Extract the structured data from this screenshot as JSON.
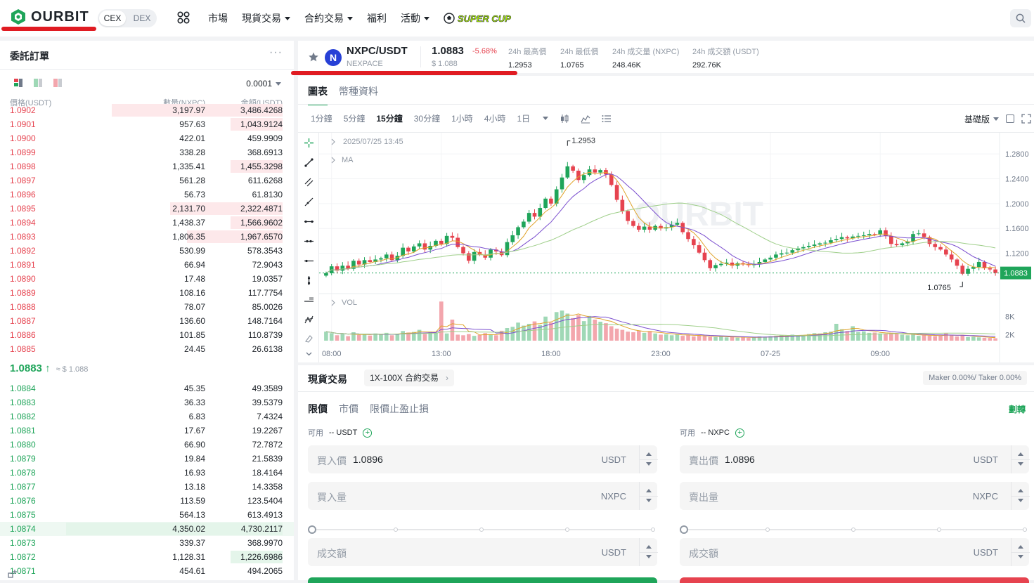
{
  "header": {
    "logo_text": "OURBIT",
    "segments": [
      {
        "label": "CEX",
        "active": true
      },
      {
        "label": "DEX",
        "active": false
      }
    ],
    "nav": [
      {
        "label": "市場",
        "dropdown": false
      },
      {
        "label": "現貨交易",
        "dropdown": true
      },
      {
        "label": "合約交易",
        "dropdown": true
      },
      {
        "label": "福利",
        "dropdown": false
      },
      {
        "label": "活動",
        "dropdown": true
      }
    ],
    "promo_label": "SUPER CUP",
    "search_icon": "search-icon"
  },
  "orderbook": {
    "title": "委託訂單",
    "precision": "0.0001",
    "headers": {
      "price": "價格(USDT)",
      "qty": "數量(NXPC)",
      "amount": "金額(USDT)"
    },
    "asks": [
      {
        "price": "1.0902",
        "qty": "3,197.97",
        "amount": "3,486.4268",
        "depth": 0.79
      },
      {
        "price": "1.0901",
        "qty": "957.63",
        "amount": "1,043.9124",
        "depth": 0.24
      },
      {
        "price": "1.0900",
        "qty": "422.01",
        "amount": "459.9909",
        "depth": 0.0
      },
      {
        "price": "1.0899",
        "qty": "338.28",
        "amount": "368.6913",
        "depth": 0.0
      },
      {
        "price": "1.0898",
        "qty": "1,335.41",
        "amount": "1,455.3298",
        "depth": 0.24
      },
      {
        "price": "1.0897",
        "qty": "561.28",
        "amount": "611.6268",
        "depth": 0.0
      },
      {
        "price": "1.0896",
        "qty": "56.73",
        "amount": "61.8130",
        "depth": 0.0
      },
      {
        "price": "1.0895",
        "qty": "2,131.70",
        "amount": "2,322.4871",
        "depth": 0.52
      },
      {
        "price": "1.0894",
        "qty": "1,438.37",
        "amount": "1,566.9602",
        "depth": 0.24
      },
      {
        "price": "1.0893",
        "qty": "1,806.35",
        "amount": "1,967.6570",
        "depth": 0.44
      },
      {
        "price": "1.0892",
        "qty": "530.99",
        "amount": "578.3543",
        "depth": 0.0
      },
      {
        "price": "1.0891",
        "qty": "66.94",
        "amount": "72.9043",
        "depth": 0.0
      },
      {
        "price": "1.0890",
        "qty": "17.48",
        "amount": "19.0357",
        "depth": 0.0
      },
      {
        "price": "1.0889",
        "qty": "108.16",
        "amount": "117.7754",
        "depth": 0.0
      },
      {
        "price": "1.0888",
        "qty": "78.07",
        "amount": "85.0026",
        "depth": 0.0
      },
      {
        "price": "1.0887",
        "qty": "136.60",
        "amount": "148.7164",
        "depth": 0.0
      },
      {
        "price": "1.0886",
        "qty": "101.85",
        "amount": "110.8739",
        "depth": 0.0
      },
      {
        "price": "1.0885",
        "qty": "24.45",
        "amount": "26.6138",
        "depth": 0.0
      }
    ],
    "last_price": "1.0883",
    "last_arrow": "↑",
    "last_fiat": "≈ $ 1.088",
    "bids": [
      {
        "price": "1.0884",
        "qty": "45.35",
        "amount": "49.3589",
        "depth": 0.0
      },
      {
        "price": "1.0883",
        "qty": "36.33",
        "amount": "39.5379",
        "depth": 0.0
      },
      {
        "price": "1.0882",
        "qty": "6.83",
        "amount": "7.4324",
        "depth": 0.0
      },
      {
        "price": "1.0881",
        "qty": "17.67",
        "amount": "19.2267",
        "depth": 0.0
      },
      {
        "price": "1.0880",
        "qty": "66.90",
        "amount": "72.7872",
        "depth": 0.0
      },
      {
        "price": "1.0879",
        "qty": "19.84",
        "amount": "21.5839",
        "depth": 0.0
      },
      {
        "price": "1.0878",
        "qty": "16.93",
        "amount": "18.4164",
        "depth": 0.0
      },
      {
        "price": "1.0877",
        "qty": "13.18",
        "amount": "14.3358",
        "depth": 0.0
      },
      {
        "price": "1.0876",
        "qty": "113.59",
        "amount": "123.5404",
        "depth": 0.0
      },
      {
        "price": "1.0875",
        "qty": "564.13",
        "amount": "613.4913",
        "depth": 0.0
      },
      {
        "price": "1.0874",
        "qty": "4,350.02",
        "amount": "4,730.2117",
        "depth": 1.0
      },
      {
        "price": "1.0873",
        "qty": "339.37",
        "amount": "368.9970",
        "depth": 0.0
      },
      {
        "price": "1.0872",
        "qty": "1,128.31",
        "amount": "1,226.6986",
        "depth": 0.24
      },
      {
        "price": "1.0871",
        "qty": "454.61",
        "amount": "494.2065",
        "depth": 0.0
      }
    ]
  },
  "ticker": {
    "pair": "NXPC/USDT",
    "name": "NEXPACE",
    "coin_letter": "N",
    "price": "1.0883",
    "change": "-5.68%",
    "fiat": "$ 1.088",
    "stats": [
      {
        "label": "24h 最高價",
        "value": "1.2953"
      },
      {
        "label": "24h 最低價",
        "value": "1.0765"
      },
      {
        "label": "24h 成交量 (NXPC)",
        "value": "248.46K"
      },
      {
        "label": "24h 成交額 (USDT)",
        "value": "292.76K"
      }
    ]
  },
  "chart_panel": {
    "tabs": [
      {
        "label": "圖表",
        "active": true
      },
      {
        "label": "幣種資料",
        "active": false
      }
    ],
    "timeframes": [
      {
        "label": "1分鐘",
        "active": false
      },
      {
        "label": "5分鐘",
        "active": false
      },
      {
        "label": "15分鐘",
        "active": true
      },
      {
        "label": "30分鐘",
        "active": false
      },
      {
        "label": "1小時",
        "active": false
      },
      {
        "label": "4小時",
        "active": false
      },
      {
        "label": "1日",
        "active": false
      }
    ],
    "version": "基礎版"
  },
  "chart_data": {
    "type": "candlestick",
    "legend_date": "2025/07/25 13:45",
    "legend_ma": "MA",
    "legend_vol": "VOL",
    "watermark": "OURBIT",
    "last_price_label": "1.0883",
    "last_price": 1.0883,
    "high_label": "1.2953",
    "low_label": "1.0765",
    "y_ticks": [
      1.28,
      1.24,
      1.2,
      1.16,
      1.12
    ],
    "y_tick_labels": [
      "1.2800",
      "1.2400",
      "1.2000",
      "1.1600",
      "1.1200"
    ],
    "ylim": [
      1.063,
      1.305
    ],
    "vol_ticks": [
      {
        "label": "8K",
        "value": 8000
      },
      {
        "label": "2K",
        "value": 2000
      }
    ],
    "vol_max": 14000,
    "x_ticks": [
      {
        "label": "08:00",
        "index": 1
      },
      {
        "label": "13:00",
        "index": 21
      },
      {
        "label": "18:00",
        "index": 41
      },
      {
        "label": "23:00",
        "index": 61
      },
      {
        "label": "07-25",
        "index": 81
      },
      {
        "label": "09:00",
        "index": 101
      }
    ],
    "closes": [
      1.088,
      1.099,
      1.092,
      1.1,
      1.095,
      1.108,
      1.102,
      1.109,
      1.106,
      1.11,
      1.112,
      1.118,
      1.109,
      1.116,
      1.129,
      1.123,
      1.131,
      1.136,
      1.126,
      1.132,
      1.14,
      1.135,
      1.148,
      1.145,
      1.13,
      1.12,
      1.108,
      1.122,
      1.118,
      1.113,
      1.126,
      1.123,
      1.117,
      1.138,
      1.149,
      1.162,
      1.171,
      1.185,
      1.179,
      1.193,
      1.208,
      1.2,
      1.223,
      1.242,
      1.26,
      1.253,
      1.238,
      1.246,
      1.255,
      1.25,
      1.254,
      1.247,
      1.23,
      1.206,
      1.188,
      1.172,
      1.164,
      1.158,
      1.163,
      1.158,
      1.164,
      1.16,
      1.162,
      1.166,
      1.169,
      1.154,
      1.143,
      1.133,
      1.121,
      1.109,
      1.096,
      1.101,
      1.103,
      1.105,
      1.1,
      1.104,
      1.102,
      1.101,
      1.103,
      1.106,
      1.11,
      1.113,
      1.118,
      1.12,
      1.121,
      1.125,
      1.128,
      1.13,
      1.132,
      1.134,
      1.136,
      1.137,
      1.141,
      1.143,
      1.146,
      1.144,
      1.147,
      1.148,
      1.149,
      1.151,
      1.15,
      1.157,
      1.148,
      1.135,
      1.133,
      1.136,
      1.139,
      1.151,
      1.152,
      1.146,
      1.135,
      1.13,
      1.126,
      1.118,
      1.11,
      1.1,
      1.087,
      1.095,
      1.098,
      1.106,
      1.096,
      1.094,
      1.0883
    ],
    "volumes": [
      3000,
      2500,
      1800,
      2200,
      1500,
      2800,
      1900,
      2100,
      1700,
      2400,
      2000,
      2600,
      1800,
      2300,
      3200,
      2700,
      2900,
      3600,
      2200,
      3000,
      2700,
      13000,
      2400,
      7000,
      2000,
      1800,
      2200,
      1600,
      1900,
      2500,
      2100,
      1800,
      3300,
      4200,
      4600,
      6000,
      5000,
      5600,
      6400,
      5200,
      8000,
      6000,
      9500,
      10000,
      9000,
      7500,
      8500,
      6500,
      8200,
      7000,
      6300,
      5800,
      4800,
      4000,
      3600,
      3000,
      2800,
      3300,
      2600,
      3200,
      2400,
      2000,
      2100,
      1800,
      2200,
      1600,
      1900,
      1400,
      1700,
      1500,
      1300,
      1200,
      1400,
      1100,
      1300,
      1000,
      1200,
      900,
      1100,
      1400,
      1300,
      1500,
      1600,
      1800,
      1700,
      2000,
      1600,
      1900,
      2200,
      2500,
      2400,
      2800,
      3000,
      5600,
      3800,
      3200,
      4800,
      2900,
      3100,
      2600,
      2700,
      2400,
      2200,
      2600,
      2300,
      2000,
      1800,
      2100,
      1600,
      1900,
      1700,
      1500,
      1600,
      2500,
      1900,
      1400,
      1800,
      1200,
      1300,
      1100,
      1000,
      900,
      800
    ]
  },
  "trade_panel": {
    "title": "現貨交易",
    "contract_tag": "1X-100X 合約交易",
    "fee": "Maker 0.00%/ Taker 0.00%",
    "order_tabs": [
      {
        "label": "限價",
        "active": true
      },
      {
        "label": "市價",
        "active": false
      },
      {
        "label": "限價止盈止損",
        "active": false
      }
    ],
    "swap_label": "劃轉",
    "buy": {
      "avail_label": "可用",
      "avail_value": "-- USDT",
      "price_label": "買入價",
      "price_value": "1.0896",
      "price_unit": "USDT",
      "qty_label": "買入量",
      "qty_unit": "NXPC",
      "total_label": "成交額",
      "total_unit": "USDT",
      "accent": "#1fa55a"
    },
    "sell": {
      "avail_label": "可用",
      "avail_value": "-- NXPC",
      "price_label": "賣出價",
      "price_value": "1.0896",
      "price_unit": "USDT",
      "qty_label": "賣出量",
      "qty_unit": "NXPC",
      "total_label": "成交額",
      "total_unit": "USDT",
      "accent": "#e6434f"
    }
  },
  "colors": {
    "up": "#1fa55a",
    "down": "#e6434f",
    "annotation": "#e01b22"
  }
}
